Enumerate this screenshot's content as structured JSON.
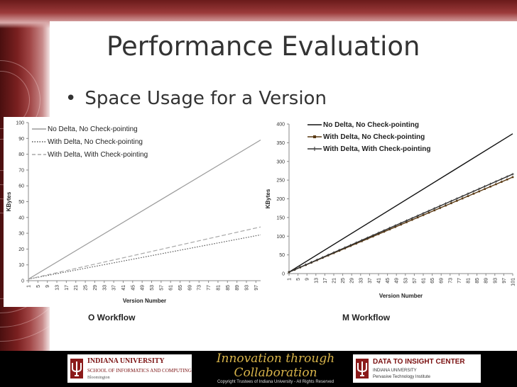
{
  "slide": {
    "title": "Performance Evaluation",
    "bullet": "Space Usage for a Version",
    "bullet_symbol": "•"
  },
  "captions": {
    "left": "O Workflow",
    "right": "M Workflow"
  },
  "chart_data": [
    {
      "type": "line",
      "xlabel": "Version Number",
      "ylabel": "KBytes",
      "xlim": [
        1,
        99
      ],
      "ylim": [
        0,
        100
      ],
      "y_ticks": [
        0,
        10,
        20,
        30,
        40,
        50,
        60,
        70,
        80,
        90,
        100
      ],
      "x_ticks": [
        "1",
        "5",
        "9",
        "13",
        "17",
        "21",
        "25",
        "29",
        "33",
        "37",
        "41",
        "45",
        "49",
        "53",
        "57",
        "61",
        "65",
        "69",
        "73",
        "77",
        "81",
        "85",
        "89",
        "93",
        "97"
      ],
      "grid": false,
      "legend_position": "top-left",
      "series": [
        {
          "name": "No Delta, No Check-pointing",
          "color": "#9a9a9a",
          "style": "solid",
          "x": [
            1,
            99
          ],
          "y": [
            1,
            89
          ]
        },
        {
          "name": "With Delta, No Check-pointing",
          "color": "#555555",
          "style": "dotted",
          "x": [
            1,
            99
          ],
          "y": [
            1,
            29
          ]
        },
        {
          "name": "With Delta, With Check-pointing",
          "color": "#a8a8a8",
          "style": "dashed",
          "x": [
            1,
            99
          ],
          "y": [
            1,
            34
          ]
        }
      ]
    },
    {
      "type": "line",
      "xlabel": "Version Number",
      "ylabel": "KBytes",
      "xlim": [
        1,
        101
      ],
      "ylim": [
        0,
        400
      ],
      "y_ticks": [
        0,
        50,
        100,
        150,
        200,
        250,
        300,
        350,
        400
      ],
      "x_ticks": [
        "1",
        "5",
        "9",
        "13",
        "17",
        "21",
        "25",
        "29",
        "33",
        "37",
        "41",
        "45",
        "49",
        "53",
        "57",
        "61",
        "65",
        "69",
        "73",
        "77",
        "81",
        "85",
        "89",
        "93",
        "97",
        "101"
      ],
      "grid": false,
      "legend_position": "top-left",
      "series": [
        {
          "name": "No Delta, No Check-pointing",
          "color": "#111111",
          "style": "solid",
          "marker": "none",
          "x": [
            1,
            101
          ],
          "y": [
            4,
            374
          ]
        },
        {
          "name": "With Delta, No Check-pointing",
          "color": "#5a3a14",
          "style": "solid",
          "marker": "square",
          "x": [
            1,
            101
          ],
          "y": [
            4,
            258
          ]
        },
        {
          "name": "With Delta, With Check-pointing",
          "color": "#333333",
          "style": "solid",
          "marker": "star",
          "x": [
            1,
            101
          ],
          "y": [
            4,
            266
          ]
        }
      ]
    }
  ],
  "footer": {
    "iu_name": "INDIANA UNIVERSITY",
    "iu_school": "SCHOOL OF INFORMATICS AND COMPUTING",
    "iu_campus": "Bloomington",
    "innovation_line1": "Innovation through",
    "innovation_line2": "Collaboration",
    "copyright": "Copyright Trustees of Indiana University - All Rights Reserved",
    "d2i_name": "DATA TO INSIGHT CENTER",
    "d2i_sub1": "INDIANA UNIVERSITY",
    "d2i_sub2": "Pervasive Technology Institute"
  }
}
